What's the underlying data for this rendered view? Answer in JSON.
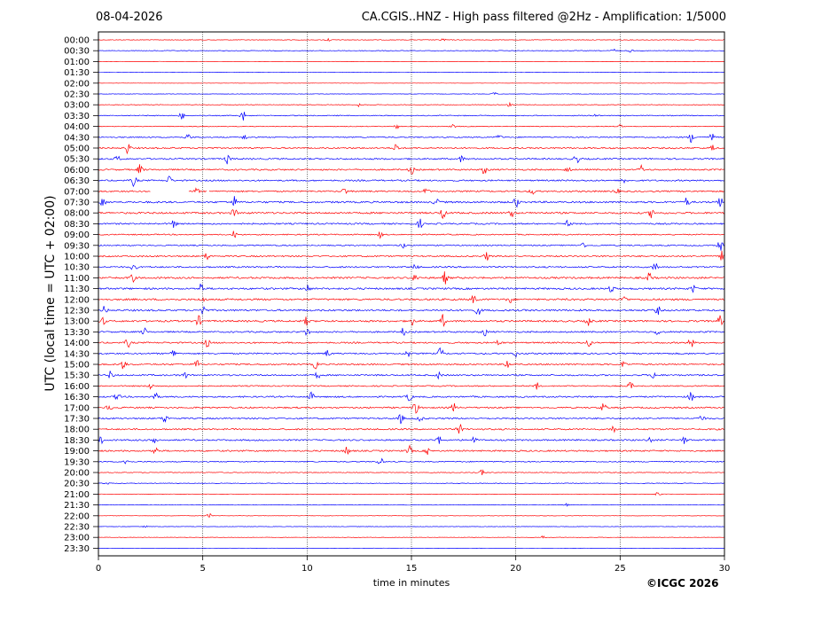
{
  "header": {
    "date": "08-04-2026",
    "title": "CA.CGIS..HNZ - High pass filtered @2Hz - Amplification: 1/5000"
  },
  "footer": {
    "copyright": "©ICGC 2026"
  },
  "colors": {
    "series_a": "#ff0000",
    "series_b": "#0000ff",
    "grid": "#000000"
  },
  "chart_data": {
    "type": "line",
    "title": "CA.CGIS..HNZ - High pass filtered @2Hz - Amplification: 1/5000",
    "xlabel": "time in minutes",
    "ylabel": "UTC (local time = UTC + 02:00)",
    "xlim": [
      0,
      30
    ],
    "x_ticks": [
      0,
      5,
      10,
      15,
      20,
      25,
      30
    ],
    "vertical_gridlines": [
      5,
      10,
      15,
      20,
      25
    ],
    "rows": [
      {
        "label": "00:00",
        "color": "#ff0000",
        "level": 0.2,
        "events": [
          [
            11,
            0.3
          ],
          [
            16.5,
            0.3
          ]
        ]
      },
      {
        "label": "00:30",
        "color": "#0000ff",
        "level": 0.2,
        "events": [
          [
            24.7,
            0.4
          ],
          [
            25.5,
            0.3
          ]
        ]
      },
      {
        "label": "01:00",
        "color": "#ff0000",
        "level": 0.1,
        "events": []
      },
      {
        "label": "01:30",
        "color": "#0000ff",
        "level": 0.1,
        "events": []
      },
      {
        "label": "02:00",
        "color": "#ff0000",
        "level": 0.1,
        "events": []
      },
      {
        "label": "02:30",
        "color": "#0000ff",
        "level": 0.15,
        "events": [
          [
            19,
            0.3
          ]
        ]
      },
      {
        "label": "03:00",
        "color": "#ff0000",
        "level": 0.2,
        "events": [
          [
            12.5,
            0.3
          ],
          [
            19.7,
            0.3
          ]
        ]
      },
      {
        "label": "03:30",
        "color": "#0000ff",
        "level": 0.3,
        "events": [
          [
            4,
            0.6
          ],
          [
            6.9,
            1.0
          ],
          [
            23.8,
            0.5
          ]
        ]
      },
      {
        "label": "04:00",
        "color": "#ff0000",
        "level": 0.25,
        "events": [
          [
            14.3,
            0.4
          ],
          [
            17,
            0.3
          ],
          [
            25,
            0.3
          ]
        ]
      },
      {
        "label": "04:30",
        "color": "#0000ff",
        "level": 0.4,
        "events": [
          [
            4.3,
            0.6
          ],
          [
            7,
            0.4
          ],
          [
            19.2,
            0.5
          ],
          [
            28.4,
            0.8
          ],
          [
            29.4,
            0.7
          ]
        ]
      },
      {
        "label": "05:00",
        "color": "#ff0000",
        "level": 0.5,
        "events": [
          [
            1.4,
            1.0
          ],
          [
            14.3,
            0.8
          ],
          [
            29.4,
            0.7
          ]
        ]
      },
      {
        "label": "05:30",
        "color": "#0000ff",
        "level": 0.5,
        "events": [
          [
            0.9,
            0.6
          ],
          [
            6.2,
            0.9
          ],
          [
            17.4,
            0.5
          ],
          [
            22.9,
            0.9
          ]
        ]
      },
      {
        "label": "06:00",
        "color": "#ff0000",
        "level": 0.5,
        "events": [
          [
            2,
            0.9
          ],
          [
            15,
            0.7
          ],
          [
            18.5,
            0.8
          ],
          [
            22.5,
            0.5
          ],
          [
            26,
            0.7
          ]
        ]
      },
      {
        "label": "06:30",
        "color": "#0000ff",
        "level": 0.5,
        "events": [
          [
            1.7,
            0.9
          ],
          [
            3.4,
            0.7
          ],
          [
            25.2,
            0.5
          ]
        ]
      },
      {
        "label": "07:00",
        "color": "#ff0000",
        "level": 0.5,
        "events": [
          [
            4.7,
            0.5
          ],
          [
            11.8,
            0.6
          ],
          [
            15.7,
            0.6
          ],
          [
            20.8,
            0.6
          ],
          [
            24.8,
            0.7
          ]
        ],
        "gaps": [
          [
            2.5,
            4.3
          ],
          [
            5.2,
            5.3
          ]
        ]
      },
      {
        "label": "07:30",
        "color": "#0000ff",
        "level": 0.6,
        "events": [
          [
            0.2,
            0.9
          ],
          [
            6.5,
            0.9
          ],
          [
            16.2,
            0.7
          ],
          [
            20,
            1.1
          ],
          [
            28.2,
            0.8
          ],
          [
            29.8,
            0.9
          ]
        ]
      },
      {
        "label": "08:00",
        "color": "#ff0000",
        "level": 0.6,
        "events": [
          [
            6.5,
            0.8
          ],
          [
            16.5,
            1.0
          ],
          [
            19.8,
            0.7
          ],
          [
            26.5,
            0.8
          ]
        ]
      },
      {
        "label": "08:30",
        "color": "#0000ff",
        "level": 0.5,
        "events": [
          [
            3.6,
            0.8
          ],
          [
            15.4,
            0.8
          ],
          [
            22.5,
            0.5
          ]
        ]
      },
      {
        "label": "09:00",
        "color": "#ff0000",
        "level": 0.4,
        "events": [
          [
            6.5,
            0.6
          ],
          [
            13.5,
            0.5
          ]
        ]
      },
      {
        "label": "09:30",
        "color": "#0000ff",
        "level": 0.4,
        "events": [
          [
            14.6,
            0.5
          ],
          [
            23.2,
            0.6
          ],
          [
            29.8,
            0.9
          ]
        ]
      },
      {
        "label": "10:00",
        "color": "#ff0000",
        "level": 0.5,
        "events": [
          [
            5.2,
            0.6
          ],
          [
            18.6,
            0.7
          ],
          [
            29.9,
            0.9
          ]
        ]
      },
      {
        "label": "10:30",
        "color": "#0000ff",
        "level": 0.5,
        "events": [
          [
            1.7,
            0.9
          ],
          [
            15.2,
            0.6
          ],
          [
            26.7,
            0.9
          ]
        ]
      },
      {
        "label": "11:00",
        "color": "#ff0000",
        "level": 0.6,
        "events": [
          [
            1.6,
            0.9
          ],
          [
            15.2,
            0.8
          ],
          [
            16.6,
            1.0
          ],
          [
            26.4,
            0.9
          ]
        ]
      },
      {
        "label": "11:30",
        "color": "#0000ff",
        "level": 0.6,
        "events": [
          [
            4.9,
            0.9
          ],
          [
            10,
            0.7
          ],
          [
            24.6,
            0.7
          ],
          [
            28.5,
            0.6
          ]
        ]
      },
      {
        "label": "12:00",
        "color": "#ff0000",
        "level": 0.6,
        "events": [
          [
            5,
            0.6
          ],
          [
            18,
            0.9
          ],
          [
            19.7,
            0.7
          ],
          [
            25.2,
            0.7
          ]
        ]
      },
      {
        "label": "12:30",
        "color": "#0000ff",
        "level": 0.6,
        "events": [
          [
            0.3,
            0.7
          ],
          [
            5,
            0.9
          ],
          [
            18.2,
            0.8
          ],
          [
            26.8,
            0.7
          ]
        ]
      },
      {
        "label": "13:00",
        "color": "#ff0000",
        "level": 0.6,
        "events": [
          [
            0.2,
            0.8
          ],
          [
            4.8,
            0.8
          ],
          [
            10,
            0.8
          ],
          [
            15,
            0.8
          ],
          [
            16.5,
            1.0
          ],
          [
            23.5,
            0.8
          ],
          [
            29.8,
            0.9
          ]
        ]
      },
      {
        "label": "13:30",
        "color": "#0000ff",
        "level": 0.5,
        "events": [
          [
            2.2,
            0.6
          ],
          [
            10,
            0.7
          ],
          [
            14.6,
            0.6
          ],
          [
            18.5,
            0.7
          ],
          [
            26.8,
            0.6
          ]
        ]
      },
      {
        "label": "14:00",
        "color": "#ff0000",
        "level": 0.5,
        "events": [
          [
            1.4,
            0.8
          ],
          [
            5.2,
            0.8
          ],
          [
            19.2,
            0.6
          ],
          [
            23.5,
            0.8
          ],
          [
            28.4,
            0.9
          ]
        ]
      },
      {
        "label": "14:30",
        "color": "#0000ff",
        "level": 0.5,
        "events": [
          [
            3.6,
            0.7
          ],
          [
            11,
            0.6
          ],
          [
            14.8,
            0.7
          ],
          [
            16.4,
            1.0
          ],
          [
            20,
            0.5
          ]
        ]
      },
      {
        "label": "15:00",
        "color": "#ff0000",
        "level": 0.5,
        "events": [
          [
            1.2,
            0.8
          ],
          [
            4.7,
            0.8
          ],
          [
            10.4,
            0.7
          ],
          [
            19.6,
            0.8
          ],
          [
            25.2,
            0.7
          ]
        ]
      },
      {
        "label": "15:30",
        "color": "#0000ff",
        "level": 0.5,
        "events": [
          [
            0.6,
            0.7
          ],
          [
            4.1,
            0.8
          ],
          [
            10.5,
            0.6
          ],
          [
            16.3,
            0.6
          ],
          [
            26.6,
            0.6
          ]
        ]
      },
      {
        "label": "16:00",
        "color": "#ff0000",
        "level": 0.4,
        "events": [
          [
            2.5,
            0.5
          ],
          [
            21,
            0.6
          ],
          [
            25.5,
            0.8
          ]
        ]
      },
      {
        "label": "16:30",
        "color": "#0000ff",
        "level": 0.5,
        "events": [
          [
            0.9,
            0.8
          ],
          [
            2.7,
            0.9
          ],
          [
            10.2,
            0.7
          ],
          [
            14.9,
            0.8
          ],
          [
            28.4,
            0.9
          ]
        ]
      },
      {
        "label": "17:00",
        "color": "#ff0000",
        "level": 0.5,
        "events": [
          [
            0.5,
            0.8
          ],
          [
            15.2,
            1.1
          ],
          [
            17,
            0.8
          ],
          [
            24.2,
            0.7
          ]
        ]
      },
      {
        "label": "17:30",
        "color": "#0000ff",
        "level": 0.5,
        "events": [
          [
            3.2,
            0.8
          ],
          [
            14.5,
            0.8
          ],
          [
            15.4,
            0.6
          ],
          [
            28.9,
            0.7
          ]
        ]
      },
      {
        "label": "18:00",
        "color": "#ff0000",
        "level": 0.5,
        "events": [
          [
            17.3,
            0.9
          ],
          [
            24.7,
            0.8
          ]
        ]
      },
      {
        "label": "18:30",
        "color": "#0000ff",
        "level": 0.5,
        "events": [
          [
            0.1,
            0.8
          ],
          [
            2.7,
            0.8
          ],
          [
            16.3,
            0.7
          ],
          [
            18,
            0.6
          ],
          [
            26.4,
            0.5
          ],
          [
            28.1,
            0.6
          ]
        ]
      },
      {
        "label": "19:00",
        "color": "#ff0000",
        "level": 0.5,
        "events": [
          [
            2.7,
            0.9
          ],
          [
            11.9,
            0.8
          ],
          [
            14.9,
            0.8
          ],
          [
            15.8,
            0.6
          ]
        ]
      },
      {
        "label": "19:30",
        "color": "#0000ff",
        "level": 0.35,
        "events": [
          [
            1.3,
            0.6
          ],
          [
            13.5,
            0.8
          ]
        ]
      },
      {
        "label": "20:00",
        "color": "#ff0000",
        "level": 0.25,
        "events": [
          [
            18.4,
            0.5
          ]
        ]
      },
      {
        "label": "20:30",
        "color": "#0000ff",
        "level": 0.2,
        "events": [
          [
            0.5,
            0.4
          ]
        ]
      },
      {
        "label": "21:00",
        "color": "#ff0000",
        "level": 0.15,
        "events": [
          [
            26.8,
            0.4
          ]
        ]
      },
      {
        "label": "21:30",
        "color": "#0000ff",
        "level": 0.15,
        "events": [
          [
            22.4,
            0.3
          ]
        ]
      },
      {
        "label": "22:00",
        "color": "#ff0000",
        "level": 0.15,
        "events": [
          [
            5.3,
            0.4
          ]
        ]
      },
      {
        "label": "22:30",
        "color": "#0000ff",
        "level": 0.15,
        "events": [
          [
            2.2,
            0.3
          ]
        ]
      },
      {
        "label": "23:00",
        "color": "#ff0000",
        "level": 0.15,
        "events": [
          [
            21.3,
            0.4
          ]
        ]
      },
      {
        "label": "23:30",
        "color": "#0000ff",
        "level": 0.1,
        "events": []
      }
    ]
  }
}
